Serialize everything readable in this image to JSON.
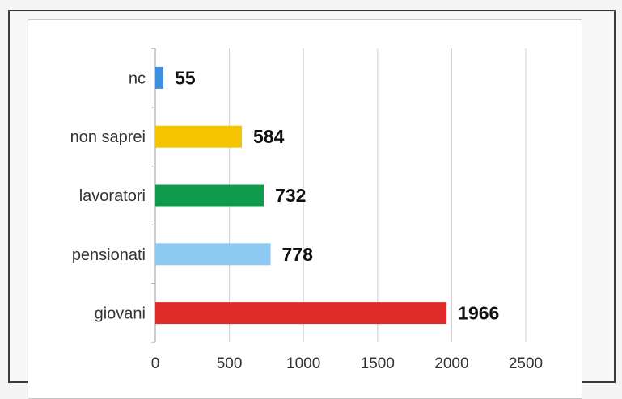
{
  "chart_data": {
    "type": "bar",
    "orientation": "horizontal",
    "categories": [
      "nc",
      "non saprei",
      "lavoratori",
      "pensionati",
      "giovani"
    ],
    "values": [
      55,
      584,
      732,
      778,
      1966
    ],
    "colors": [
      "#3d8fe0",
      "#f7c400",
      "#0f9a4c",
      "#8ec9f2",
      "#e02b2b"
    ],
    "title": "",
    "xlabel": "",
    "ylabel": "",
    "xlim": [
      0,
      2500
    ],
    "xticks": [
      0,
      500,
      1000,
      1500,
      2000,
      2500
    ],
    "tick_labels": [
      "0",
      "500",
      "1000",
      "1500",
      "2000",
      "2500"
    ],
    "data_labels": [
      "55",
      "584",
      "732",
      "778",
      "1966"
    ],
    "grid": "vertical",
    "legend": "none"
  }
}
